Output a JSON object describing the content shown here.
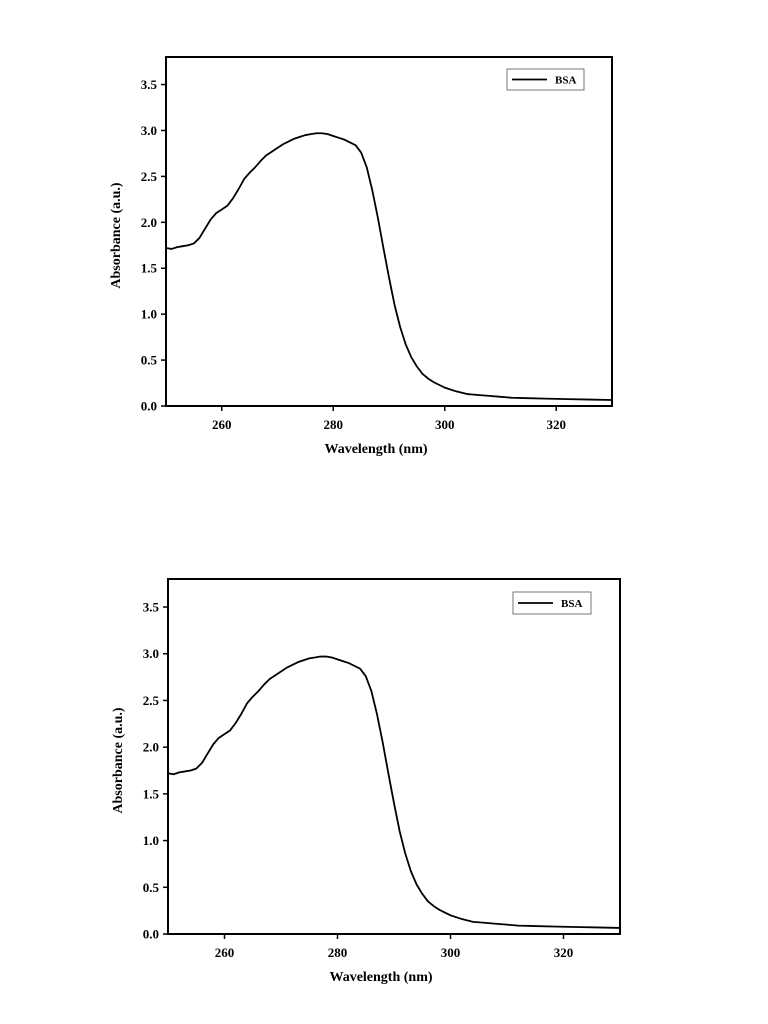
{
  "chart_data": [
    {
      "type": "line",
      "xlabel": "Wavelength (nm)",
      "ylabel": "Absorbance (a.u.)",
      "xlim": [
        250,
        330
      ],
      "ylim": [
        0,
        3.8
      ],
      "xticks": [
        260,
        280,
        300,
        320
      ],
      "yticks": [
        "0.0",
        "0.5",
        "1.0",
        "1.5",
        "2.0",
        "2.5",
        "3.0",
        "3.5"
      ],
      "legend_position": "top-right",
      "grid": false,
      "series": [
        {
          "name": "BSA",
          "color": "#000000",
          "x": [
            250,
            251,
            252,
            253,
            254,
            255,
            256,
            257,
            258,
            259,
            260,
            261,
            262,
            263,
            264,
            265,
            266,
            267,
            268,
            269,
            270,
            271,
            272,
            273,
            274,
            275,
            276,
            277,
            278,
            279,
            280,
            281,
            282,
            283,
            284,
            285,
            286,
            287,
            288,
            289,
            290,
            291,
            292,
            293,
            294,
            295,
            296,
            297,
            298,
            299,
            300,
            302,
            304,
            306,
            308,
            310,
            312,
            315,
            318,
            322,
            326,
            330
          ],
          "y": [
            1.72,
            1.71,
            1.73,
            1.74,
            1.75,
            1.77,
            1.83,
            1.93,
            2.03,
            2.1,
            2.14,
            2.18,
            2.26,
            2.36,
            2.47,
            2.54,
            2.6,
            2.67,
            2.73,
            2.77,
            2.81,
            2.85,
            2.88,
            2.91,
            2.93,
            2.95,
            2.96,
            2.97,
            2.97,
            2.96,
            2.94,
            2.92,
            2.9,
            2.87,
            2.84,
            2.76,
            2.6,
            2.35,
            2.05,
            1.72,
            1.4,
            1.1,
            0.86,
            0.67,
            0.53,
            0.43,
            0.35,
            0.3,
            0.26,
            0.23,
            0.2,
            0.16,
            0.13,
            0.12,
            0.11,
            0.1,
            0.09,
            0.085,
            0.08,
            0.075,
            0.07,
            0.065
          ]
        }
      ]
    },
    {
      "type": "line",
      "xlabel": "Wavelength (nm)",
      "ylabel": "Absorbance (a.u.)",
      "xlim": [
        250,
        330
      ],
      "ylim": [
        0,
        3.8
      ],
      "xticks": [
        260,
        280,
        300,
        320
      ],
      "yticks": [
        "0.0",
        "0.5",
        "1.0",
        "1.5",
        "2.0",
        "2.5",
        "3.0",
        "3.5"
      ],
      "legend_position": "top-right",
      "grid": false,
      "series": [
        {
          "name": "BSA",
          "color": "#000000",
          "x": [
            250,
            251,
            252,
            253,
            254,
            255,
            256,
            257,
            258,
            259,
            260,
            261,
            262,
            263,
            264,
            265,
            266,
            267,
            268,
            269,
            270,
            271,
            272,
            273,
            274,
            275,
            276,
            277,
            278,
            279,
            280,
            281,
            282,
            283,
            284,
            285,
            286,
            287,
            288,
            289,
            290,
            291,
            292,
            293,
            294,
            295,
            296,
            297,
            298,
            299,
            300,
            302,
            304,
            306,
            308,
            310,
            312,
            315,
            318,
            322,
            326,
            330
          ],
          "y": [
            1.72,
            1.71,
            1.73,
            1.74,
            1.75,
            1.77,
            1.83,
            1.93,
            2.03,
            2.1,
            2.14,
            2.18,
            2.26,
            2.36,
            2.47,
            2.54,
            2.6,
            2.67,
            2.73,
            2.77,
            2.81,
            2.85,
            2.88,
            2.91,
            2.93,
            2.95,
            2.96,
            2.97,
            2.97,
            2.96,
            2.94,
            2.92,
            2.9,
            2.87,
            2.84,
            2.76,
            2.6,
            2.35,
            2.05,
            1.72,
            1.4,
            1.1,
            0.86,
            0.67,
            0.53,
            0.43,
            0.35,
            0.3,
            0.26,
            0.23,
            0.2,
            0.16,
            0.13,
            0.12,
            0.11,
            0.1,
            0.09,
            0.085,
            0.08,
            0.075,
            0.07,
            0.065
          ]
        }
      ]
    }
  ]
}
